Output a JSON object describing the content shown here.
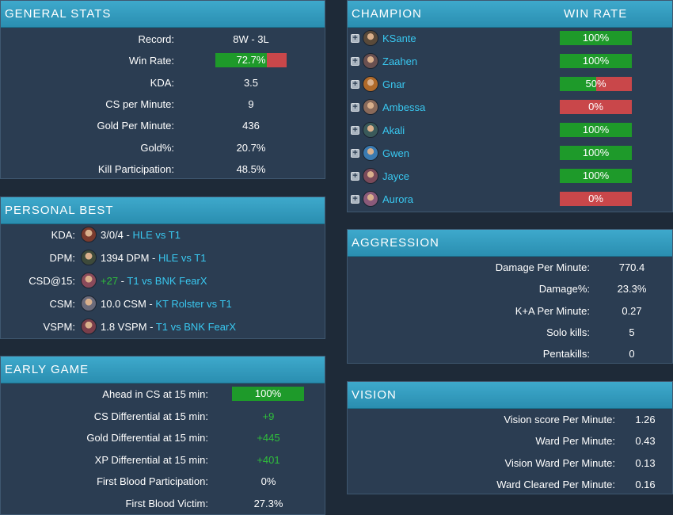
{
  "general": {
    "title": "GENERAL STATS",
    "rows": [
      {
        "label": "Record:",
        "value": "8W - 3L"
      },
      {
        "label": "Win Rate:",
        "value": "72.7%",
        "bar": 0.727
      },
      {
        "label": "KDA:",
        "value": "3.5"
      },
      {
        "label": "CS per Minute:",
        "value": "9"
      },
      {
        "label": "Gold Per Minute:",
        "value": "436"
      },
      {
        "label": "Gold%:",
        "value": "20.7%"
      },
      {
        "label": "Kill Participation:",
        "value": "48.5%"
      }
    ]
  },
  "personal_best": {
    "title": "PERSONAL BEST",
    "rows": [
      {
        "label": "KDA:",
        "stat": "3/0/4",
        "sep": " - ",
        "match": "HLE vs T1",
        "avatar": "akali-avatar",
        "color": "#7a3b2e"
      },
      {
        "label": "DPM:",
        "stat": "1394 DPM",
        "sep": " - ",
        "match": "HLE vs T1",
        "avatar": "ksante-avatar",
        "color": "#3e4a3a"
      },
      {
        "label": "CSD@15:",
        "stat": "+27",
        "sep": " - ",
        "match": "T1 vs BNK FearX",
        "avatar": "jayce-avatar",
        "color": "#8a4a5a"
      },
      {
        "label": "CSM:",
        "stat": "10.0 CSM",
        "sep": " - ",
        "match": "KT Rolster vs T1",
        "avatar": "gwen-avatar",
        "color": "#6a6a7a"
      },
      {
        "label": "VSPM:",
        "stat": "1.8 VSPM",
        "sep": " - ",
        "match": "T1 vs BNK FearX",
        "avatar": "aurora-avatar",
        "color": "#7a3e4a"
      }
    ]
  },
  "early_game": {
    "title": "EARLY GAME",
    "rows": [
      {
        "label": "Ahead in CS at 15 min:",
        "value": "100%",
        "bar": 1.0
      },
      {
        "label": "CS Differential at 15 min:",
        "value": "+9",
        "green": true
      },
      {
        "label": "Gold Differential at 15 min:",
        "value": "+445",
        "green": true
      },
      {
        "label": "XP Differential at 15 min:",
        "value": "+401",
        "green": true
      },
      {
        "label": "First Blood Participation:",
        "value": "0%"
      },
      {
        "label": "First Blood Victim:",
        "value": "27.3%"
      }
    ]
  },
  "champions": {
    "col_champion": "CHAMPION",
    "col_winrate": "WIN RATE",
    "expand_symbol": "+",
    "rows": [
      {
        "name": "KSante",
        "winrate": "100%",
        "fraction": 1.0,
        "color": "#5a4a3a"
      },
      {
        "name": "Zaahen",
        "winrate": "100%",
        "fraction": 1.0,
        "color": "#6a5050"
      },
      {
        "name": "Gnar",
        "winrate": "50%",
        "fraction": 0.5,
        "color": "#b06a2a"
      },
      {
        "name": "Ambessa",
        "winrate": "0%",
        "fraction": 0.0,
        "color": "#8a6a5a"
      },
      {
        "name": "Akali",
        "winrate": "100%",
        "fraction": 1.0,
        "color": "#3a5a5a"
      },
      {
        "name": "Gwen",
        "winrate": "100%",
        "fraction": 1.0,
        "color": "#3a7ab0"
      },
      {
        "name": "Jayce",
        "winrate": "100%",
        "fraction": 1.0,
        "color": "#7a4a5a"
      },
      {
        "name": "Aurora",
        "winrate": "0%",
        "fraction": 0.0,
        "color": "#8a5a7a"
      }
    ]
  },
  "aggression": {
    "title": "AGGRESSION",
    "rows": [
      {
        "label": "Damage Per Minute:",
        "value": "770.4"
      },
      {
        "label": "Damage%:",
        "value": "23.3%"
      },
      {
        "label": "K+A Per Minute:",
        "value": "0.27"
      },
      {
        "label": "Solo kills:",
        "value": "5"
      },
      {
        "label": "Pentakills:",
        "value": "0"
      }
    ]
  },
  "vision": {
    "title": "VISION",
    "rows": [
      {
        "label": "Vision score Per Minute:",
        "value": "1.26"
      },
      {
        "label": "Ward Per Minute:",
        "value": "0.43"
      },
      {
        "label": "Vision Ward Per Minute:",
        "value": "0.13"
      },
      {
        "label": "Ward Cleared Per Minute:",
        "value": "0.16"
      }
    ]
  },
  "colors": {
    "win": "#1e9a2a",
    "loss": "#c9474a",
    "accent": "#39c8f0",
    "positive": "#2fbf3b"
  }
}
